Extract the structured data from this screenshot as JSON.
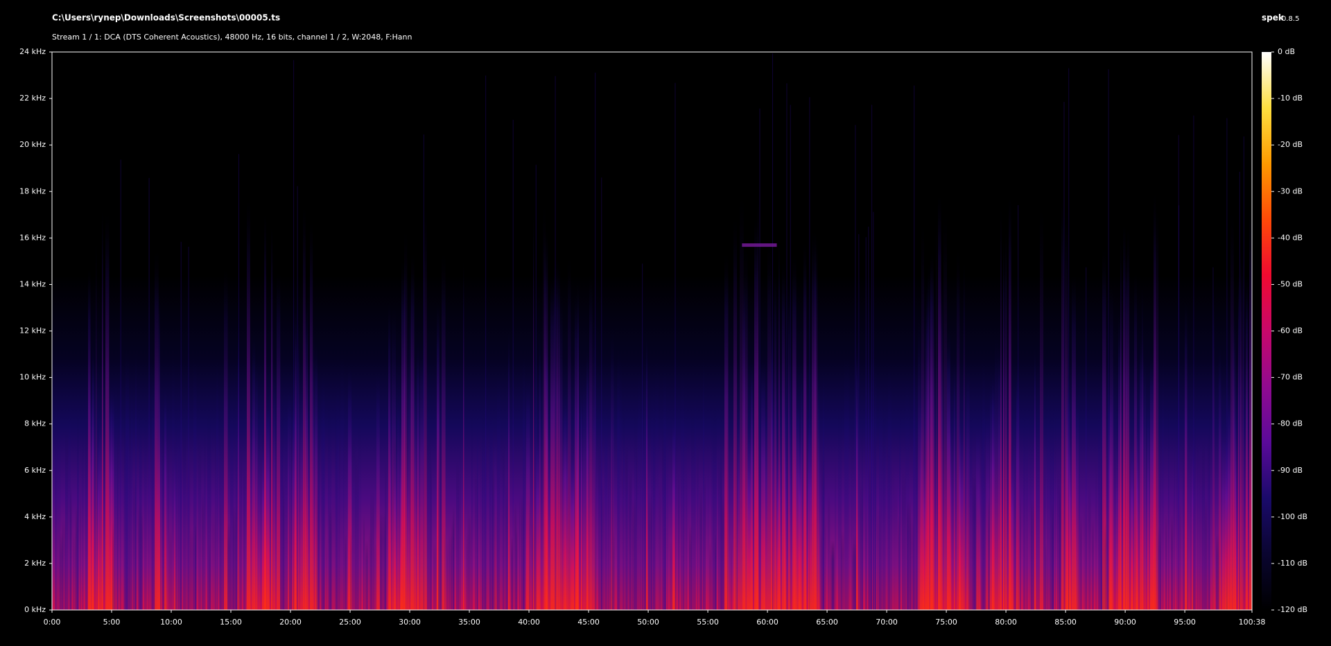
{
  "chart_data": {
    "type": "spectrogram",
    "title": "C:\\Users\\rynep\\Downloads\\Screenshots\\00005.ts",
    "subtitle": "Stream 1 / 1: DCA (DTS Coherent Acoustics), 48000 Hz, 16 bits, channel 1 / 2, W:2048, F:Hann",
    "app_name": "spek",
    "app_version": "0.8.5",
    "xlim": [
      0,
      6038
    ],
    "xticks": [
      {
        "value": 0,
        "label": "0:00"
      },
      {
        "value": 300,
        "label": "5:00"
      },
      {
        "value": 600,
        "label": "10:00"
      },
      {
        "value": 900,
        "label": "15:00"
      },
      {
        "value": 1200,
        "label": "20:00"
      },
      {
        "value": 1500,
        "label": "25:00"
      },
      {
        "value": 1800,
        "label": "30:00"
      },
      {
        "value": 2100,
        "label": "35:00"
      },
      {
        "value": 2400,
        "label": "40:00"
      },
      {
        "value": 2700,
        "label": "45:00"
      },
      {
        "value": 3000,
        "label": "50:00"
      },
      {
        "value": 3300,
        "label": "55:00"
      },
      {
        "value": 3600,
        "label": "60:00"
      },
      {
        "value": 3900,
        "label": "65:00"
      },
      {
        "value": 4200,
        "label": "70:00"
      },
      {
        "value": 4500,
        "label": "75:00"
      },
      {
        "value": 4800,
        "label": "80:00"
      },
      {
        "value": 5100,
        "label": "85:00"
      },
      {
        "value": 5400,
        "label": "90:00"
      },
      {
        "value": 5700,
        "label": "95:00"
      },
      {
        "value": 6038,
        "label": "100:38"
      }
    ],
    "ylim": [
      0,
      24
    ],
    "yticks": [
      {
        "value": 0,
        "label": "0 kHz"
      },
      {
        "value": 2,
        "label": "2 kHz"
      },
      {
        "value": 4,
        "label": "4 kHz"
      },
      {
        "value": 6,
        "label": "6 kHz"
      },
      {
        "value": 8,
        "label": "8 kHz"
      },
      {
        "value": 10,
        "label": "10 kHz"
      },
      {
        "value": 12,
        "label": "12 kHz"
      },
      {
        "value": 14,
        "label": "14 kHz"
      },
      {
        "value": 16,
        "label": "16 kHz"
      },
      {
        "value": 18,
        "label": "18 kHz"
      },
      {
        "value": 20,
        "label": "20 kHz"
      },
      {
        "value": 22,
        "label": "22 kHz"
      },
      {
        "value": 24,
        "label": "24 kHz"
      }
    ],
    "zlim": [
      -120,
      0
    ],
    "zticks": [
      {
        "value": 0,
        "label": "0 dB"
      },
      {
        "value": -10,
        "label": "-10 dB"
      },
      {
        "value": -20,
        "label": "-20 dB"
      },
      {
        "value": -30,
        "label": "-30 dB"
      },
      {
        "value": -40,
        "label": "-40 dB"
      },
      {
        "value": -50,
        "label": "-50 dB"
      },
      {
        "value": -60,
        "label": "-60 dB"
      },
      {
        "value": -70,
        "label": "-70 dB"
      },
      {
        "value": -80,
        "label": "-80 dB"
      },
      {
        "value": -90,
        "label": "-90 dB"
      },
      {
        "value": -100,
        "label": "-100 dB"
      },
      {
        "value": -110,
        "label": "-110 dB"
      },
      {
        "value": -120,
        "label": "-120 dB"
      }
    ]
  }
}
